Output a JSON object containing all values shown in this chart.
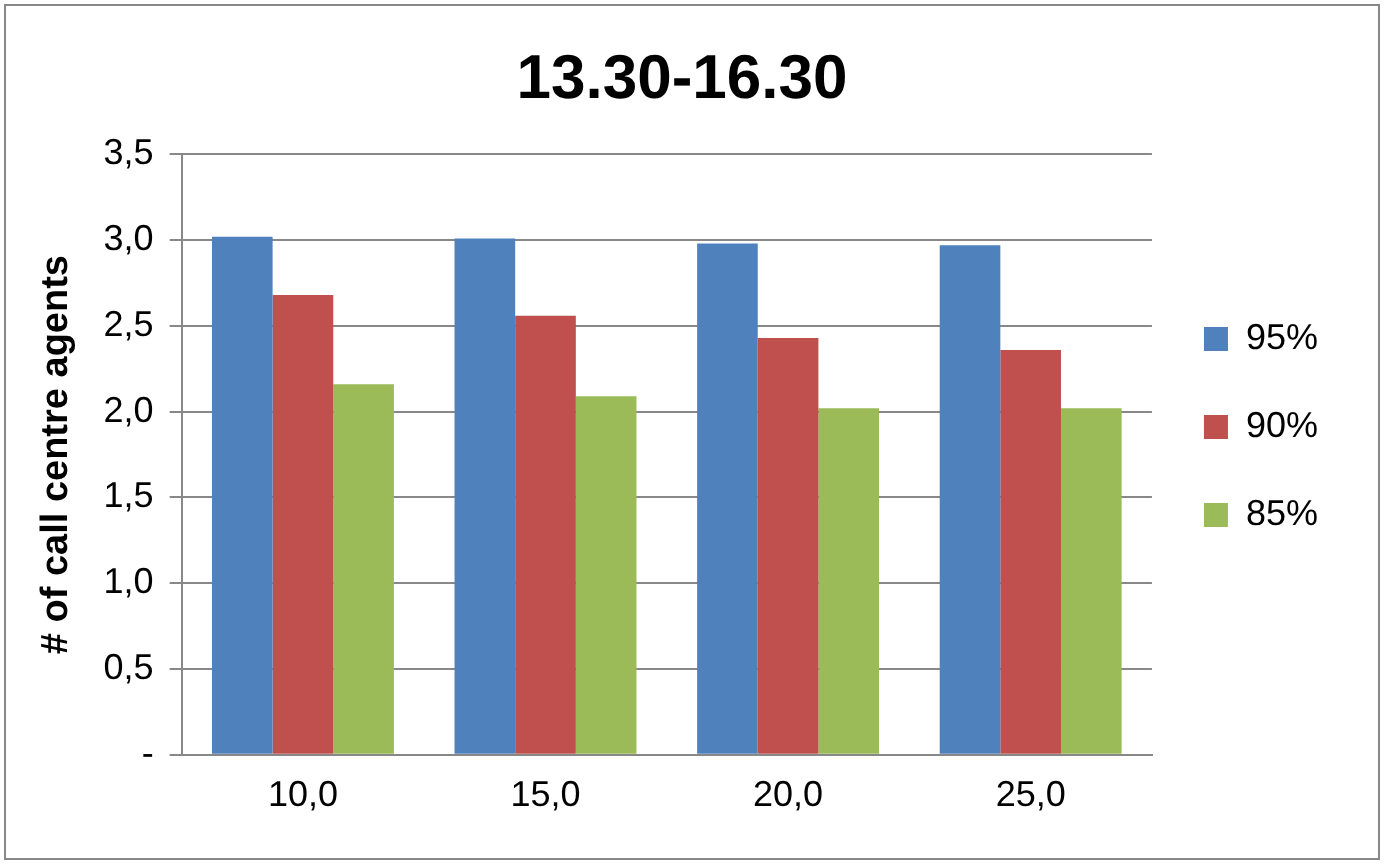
{
  "chart_data": {
    "type": "bar",
    "title": "13.30-16.30",
    "ylabel": "# of call centre agents",
    "categories": [
      "10,0",
      "15,0",
      "20,0",
      "25,0"
    ],
    "series": [
      {
        "name": "95%",
        "color": "#4f81bd",
        "values": [
          3.02,
          3.01,
          2.98,
          2.97
        ]
      },
      {
        "name": "90%",
        "color": "#c0504d",
        "values": [
          2.68,
          2.56,
          2.43,
          2.36
        ]
      },
      {
        "name": "85%",
        "color": "#9bbb59",
        "values": [
          2.16,
          2.09,
          2.02,
          2.02
        ]
      }
    ],
    "ylim": [
      0,
      3.5
    ],
    "yticks": [
      {
        "value": 0,
        "label": "-"
      },
      {
        "value": 0.5,
        "label": "0,5"
      },
      {
        "value": 1,
        "label": "1,0"
      },
      {
        "value": 1.5,
        "label": "1,5"
      },
      {
        "value": 2,
        "label": "2,0"
      },
      {
        "value": 2.5,
        "label": "2,5"
      },
      {
        "value": 3,
        "label": "3,0"
      },
      {
        "value": 3.5,
        "label": "3,5"
      }
    ],
    "grid": "y",
    "legend": "right"
  }
}
